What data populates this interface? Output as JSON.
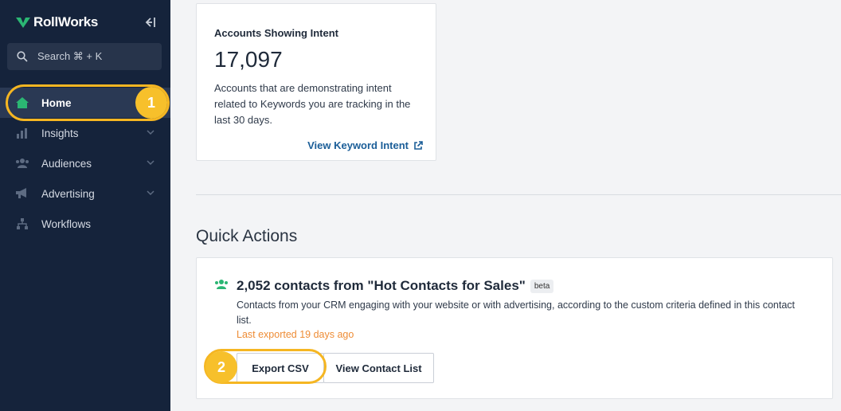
{
  "brand": {
    "name": "RollWorks"
  },
  "sidebar": {
    "search_placeholder": "Search ⌘ + K",
    "items": [
      {
        "label": "Home",
        "icon": "home-icon",
        "active": true
      },
      {
        "label": "Insights",
        "icon": "chart-icon",
        "expandable": true
      },
      {
        "label": "Audiences",
        "icon": "people-icon",
        "expandable": true
      },
      {
        "label": "Advertising",
        "icon": "megaphone-icon",
        "expandable": true
      },
      {
        "label": "Workflows",
        "icon": "workflow-icon"
      }
    ]
  },
  "callouts": {
    "one": "1",
    "two": "2"
  },
  "intent_card": {
    "label": "Accounts Showing Intent",
    "value": "17,097",
    "description": "Accounts that are demonstrating intent related to Keywords you are tracking in the last 30 days.",
    "link": "View Keyword Intent"
  },
  "quick_actions": {
    "title": "Quick Actions",
    "item": {
      "title": "2,052 contacts from \"Hot Contacts for Sales\"",
      "badge": "beta",
      "description": "Contacts from your CRM engaging with your website or with advertising, according to the custom criteria defined in this contact list.",
      "last_exported": "Last exported 19 days ago",
      "export_button": "Export CSV",
      "view_button": "View Contact List"
    }
  },
  "colors": {
    "sidebar_bg": "#15233b",
    "accent_green": "#2bb673",
    "highlight": "#f5b622",
    "link": "#1b5e98",
    "exported_orange": "#ee8c35"
  }
}
